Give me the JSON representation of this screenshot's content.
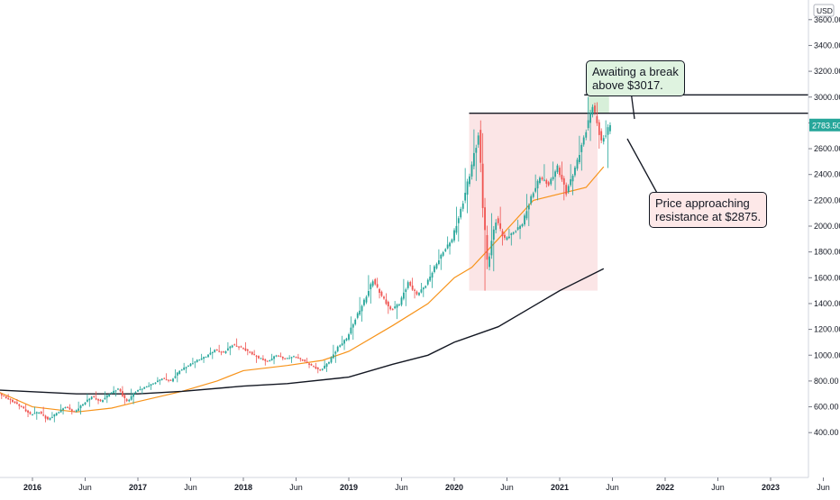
{
  "chart_data": {
    "type": "candlestick",
    "currency_label": "USD",
    "y_ticks": [
      400,
      600,
      800,
      1000,
      1200,
      1400,
      1600,
      1800,
      2000,
      2200,
      2400,
      2600,
      2800,
      3000,
      3200,
      3400,
      3600,
      3800
    ],
    "y_tick_labels": [
      "400.00",
      "600.00",
      "800.00",
      "1000.00",
      "1200.00",
      "1400.00",
      "1600.00",
      "1800.00",
      "2000.00",
      "2200.00",
      "2400.00",
      "2600.00",
      "2800.00",
      "3000.00",
      "3200.00",
      "3400.00",
      "3600.00",
      "3800.00"
    ],
    "x_ticks": [
      "2016",
      "Jun",
      "2017",
      "Jun",
      "2018",
      "Jun",
      "2019",
      "Jun",
      "2020",
      "Jun",
      "2021",
      "Jun",
      "2022",
      "Jun",
      "2023",
      "Jun"
    ],
    "last_price": 2783.5,
    "last_price_label": "2783.50",
    "resistance_levels": [
      3017,
      2875
    ],
    "range_box": {
      "start": "2020-03",
      "end": "2021-05",
      "high": 2875,
      "low": 1500
    },
    "top_zone": {
      "start": "2021-04",
      "end": "2021-06",
      "high": 3017,
      "low": 2875
    },
    "moving_averages": [
      {
        "color": "#f7931a",
        "values": [
          [
            "2015-09",
            720
          ],
          [
            "2016-01",
            600
          ],
          [
            "2016-06",
            560
          ],
          [
            "2016-10",
            590
          ],
          [
            "2017-01",
            640
          ],
          [
            "2017-06",
            720
          ],
          [
            "2017-10",
            800
          ],
          [
            "2018-01",
            880
          ],
          [
            "2018-06",
            920
          ],
          [
            "2018-10",
            960
          ],
          [
            "2019-01",
            1030
          ],
          [
            "2019-06",
            1230
          ],
          [
            "2019-10",
            1400
          ],
          [
            "2020-01",
            1600
          ],
          [
            "2020-03",
            1680
          ],
          [
            "2020-06",
            1900
          ],
          [
            "2020-10",
            2200
          ],
          [
            "2021-01",
            2250
          ],
          [
            "2021-04",
            2300
          ],
          [
            "2021-06",
            2460
          ]
        ]
      },
      {
        "color": "#131722",
        "values": [
          [
            "2015-09",
            730
          ],
          [
            "2016-06",
            700
          ],
          [
            "2017-01",
            700
          ],
          [
            "2017-06",
            720
          ],
          [
            "2018-01",
            760
          ],
          [
            "2018-06",
            780
          ],
          [
            "2019-01",
            830
          ],
          [
            "2019-06",
            930
          ],
          [
            "2019-10",
            1000
          ],
          [
            "2020-01",
            1100
          ],
          [
            "2020-06",
            1220
          ],
          [
            "2020-10",
            1380
          ],
          [
            "2021-01",
            1500
          ],
          [
            "2021-06",
            1670
          ]
        ]
      }
    ],
    "ohlc_weekly_sampled": [
      [
        "2015-09",
        720,
        730,
        660,
        680
      ],
      [
        "2015-10",
        680,
        700,
        620,
        640
      ],
      [
        "2015-11",
        640,
        660,
        580,
        600
      ],
      [
        "2015-12",
        600,
        620,
        520,
        540
      ],
      [
        "2016-01",
        540,
        600,
        500,
        560
      ],
      [
        "2016-02",
        560,
        600,
        480,
        500
      ],
      [
        "2016-03",
        500,
        560,
        480,
        550
      ],
      [
        "2016-04",
        550,
        620,
        540,
        600
      ],
      [
        "2016-05",
        600,
        620,
        540,
        560
      ],
      [
        "2016-06",
        560,
        640,
        540,
        620
      ],
      [
        "2016-07",
        620,
        700,
        600,
        680
      ],
      [
        "2016-08",
        680,
        720,
        620,
        640
      ],
      [
        "2016-09",
        640,
        720,
        630,
        700
      ],
      [
        "2016-10",
        700,
        760,
        680,
        740
      ],
      [
        "2016-11",
        740,
        760,
        620,
        640
      ],
      [
        "2016-12",
        640,
        740,
        620,
        720
      ],
      [
        "2017-01",
        720,
        760,
        700,
        750
      ],
      [
        "2017-02",
        750,
        790,
        730,
        780
      ],
      [
        "2017-03",
        780,
        830,
        770,
        820
      ],
      [
        "2017-04",
        820,
        860,
        790,
        800
      ],
      [
        "2017-05",
        800,
        890,
        790,
        880
      ],
      [
        "2017-06",
        880,
        940,
        860,
        920
      ],
      [
        "2017-07",
        920,
        980,
        900,
        960
      ],
      [
        "2017-08",
        960,
        1010,
        940,
        990
      ],
      [
        "2017-09",
        990,
        1060,
        970,
        1040
      ],
      [
        "2017-10",
        1040,
        1080,
        1000,
        1020
      ],
      [
        "2017-11",
        1020,
        1100,
        1000,
        1080
      ],
      [
        "2017-12",
        1080,
        1130,
        1040,
        1060
      ],
      [
        "2018-01",
        1060,
        1100,
        1000,
        1020
      ],
      [
        "2018-02",
        1020,
        1040,
        940,
        980
      ],
      [
        "2018-03",
        980,
        1000,
        920,
        950
      ],
      [
        "2018-04",
        950,
        1010,
        930,
        1000
      ],
      [
        "2018-05",
        1000,
        1020,
        960,
        970
      ],
      [
        "2018-06",
        970,
        1000,
        940,
        990
      ],
      [
        "2018-07",
        990,
        1010,
        950,
        960
      ],
      [
        "2018-08",
        960,
        980,
        900,
        920
      ],
      [
        "2018-09",
        920,
        940,
        860,
        880
      ],
      [
        "2018-10",
        880,
        960,
        870,
        950
      ],
      [
        "2018-11",
        950,
        1080,
        940,
        1060
      ],
      [
        "2018-12",
        1060,
        1150,
        1040,
        1130
      ],
      [
        "2019-01",
        1130,
        1300,
        1120,
        1280
      ],
      [
        "2019-02",
        1280,
        1450,
        1260,
        1420
      ],
      [
        "2019-03",
        1420,
        1620,
        1400,
        1580
      ],
      [
        "2019-04",
        1580,
        1600,
        1440,
        1460
      ],
      [
        "2019-05",
        1460,
        1480,
        1320,
        1350
      ],
      [
        "2019-06",
        1350,
        1420,
        1280,
        1400
      ],
      [
        "2019-07",
        1400,
        1590,
        1380,
        1560
      ],
      [
        "2019-08",
        1560,
        1600,
        1440,
        1470
      ],
      [
        "2019-09",
        1470,
        1560,
        1450,
        1540
      ],
      [
        "2019-10",
        1540,
        1700,
        1520,
        1680
      ],
      [
        "2019-11",
        1680,
        1820,
        1660,
        1800
      ],
      [
        "2019-12",
        1800,
        1920,
        1780,
        1900
      ],
      [
        "2020-01",
        1900,
        2150,
        1880,
        2120
      ],
      [
        "2020-02",
        2120,
        2450,
        2100,
        2400
      ],
      [
        "2020-03",
        2400,
        2750,
        2350,
        2700
      ],
      [
        "2020-04",
        2700,
        2720,
        1500,
        1700
      ],
      [
        "2020-05",
        1700,
        2100,
        1650,
        2050
      ],
      [
        "2020-06",
        2050,
        2150,
        1850,
        1900
      ],
      [
        "2020-07",
        1900,
        1980,
        1850,
        1950
      ],
      [
        "2020-08",
        1950,
        2050,
        1900,
        2020
      ],
      [
        "2020-09",
        2020,
        2250,
        2000,
        2220
      ],
      [
        "2020-10",
        2220,
        2400,
        2200,
        2380
      ],
      [
        "2020-11",
        2380,
        2480,
        2300,
        2320
      ],
      [
        "2020-12",
        2320,
        2500,
        2280,
        2460
      ],
      [
        "2021-01",
        2460,
        2500,
        2200,
        2260
      ],
      [
        "2021-02",
        2260,
        2480,
        2240,
        2450
      ],
      [
        "2021-03",
        2450,
        2700,
        2430,
        2680
      ],
      [
        "2021-04",
        2680,
        3000,
        2660,
        2940
      ],
      [
        "2021-05",
        2940,
        2960,
        2600,
        2650
      ],
      [
        "2021-06",
        2650,
        2820,
        2450,
        2783.5
      ]
    ]
  },
  "annotations": {
    "break_note_line1": "Awaiting a break",
    "break_note_line2": "above $3017.",
    "resistance_note_line1": "Price approaching",
    "resistance_note_line2": "resistance at $2875."
  }
}
